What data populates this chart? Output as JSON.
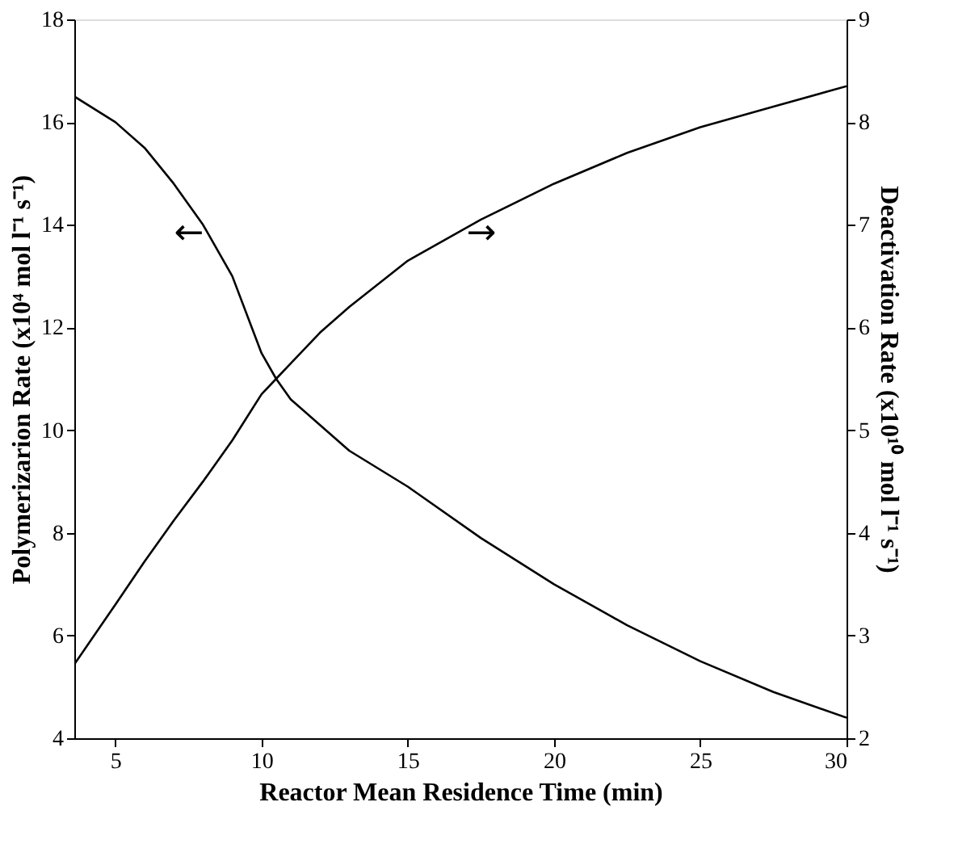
{
  "chart_data": {
    "type": "line",
    "xlabel": "Reactor Mean Residence Time (min)",
    "ylabel": "Polymerizarion Rate (x10⁴ mol l⁻¹ s⁻¹)",
    "y2label": "Deactivation Rate (x10¹⁰ mol l⁻¹ s⁻¹)",
    "xlim": [
      3.6,
      30
    ],
    "xticks": [
      5,
      10,
      15,
      20,
      25,
      30
    ],
    "ylim": [
      4,
      18
    ],
    "yticks": [
      4,
      6,
      8,
      10,
      12,
      14,
      16,
      18
    ],
    "y2lim": [
      2,
      9
    ],
    "y2ticks": [
      2,
      3,
      4,
      5,
      6,
      7,
      8,
      9
    ],
    "grid": false,
    "marker": "none",
    "line_style": "solid",
    "series": [
      {
        "color": "#000000",
        "x": [
          3.6,
          5,
          6,
          7,
          8,
          9,
          10,
          10.5,
          11,
          12,
          13,
          15,
          17.5,
          20,
          22.5,
          25,
          27.5,
          30
        ],
        "values": [
          16.5,
          16.0,
          15.5,
          14.8,
          14.0,
          13.0,
          11.5,
          11.0,
          10.6,
          10.1,
          9.6,
          8.9,
          7.9,
          7.0,
          6.2,
          5.5,
          4.9,
          4.4
        ]
      },
      {
        "color": "#000000",
        "axis": "y2",
        "x": [
          3.6,
          5,
          6,
          7,
          8,
          9,
          10,
          10.5,
          11,
          12,
          13,
          15,
          17.5,
          20,
          22.5,
          25,
          27.5,
          30
        ],
        "values": [
          2.72,
          3.3,
          3.72,
          4.12,
          4.5,
          4.9,
          5.35,
          5.5,
          5.65,
          5.95,
          6.2,
          6.65,
          7.05,
          7.4,
          7.7,
          7.95,
          8.15,
          8.35
        ]
      }
    ],
    "annotations": [
      "←",
      "→"
    ]
  }
}
